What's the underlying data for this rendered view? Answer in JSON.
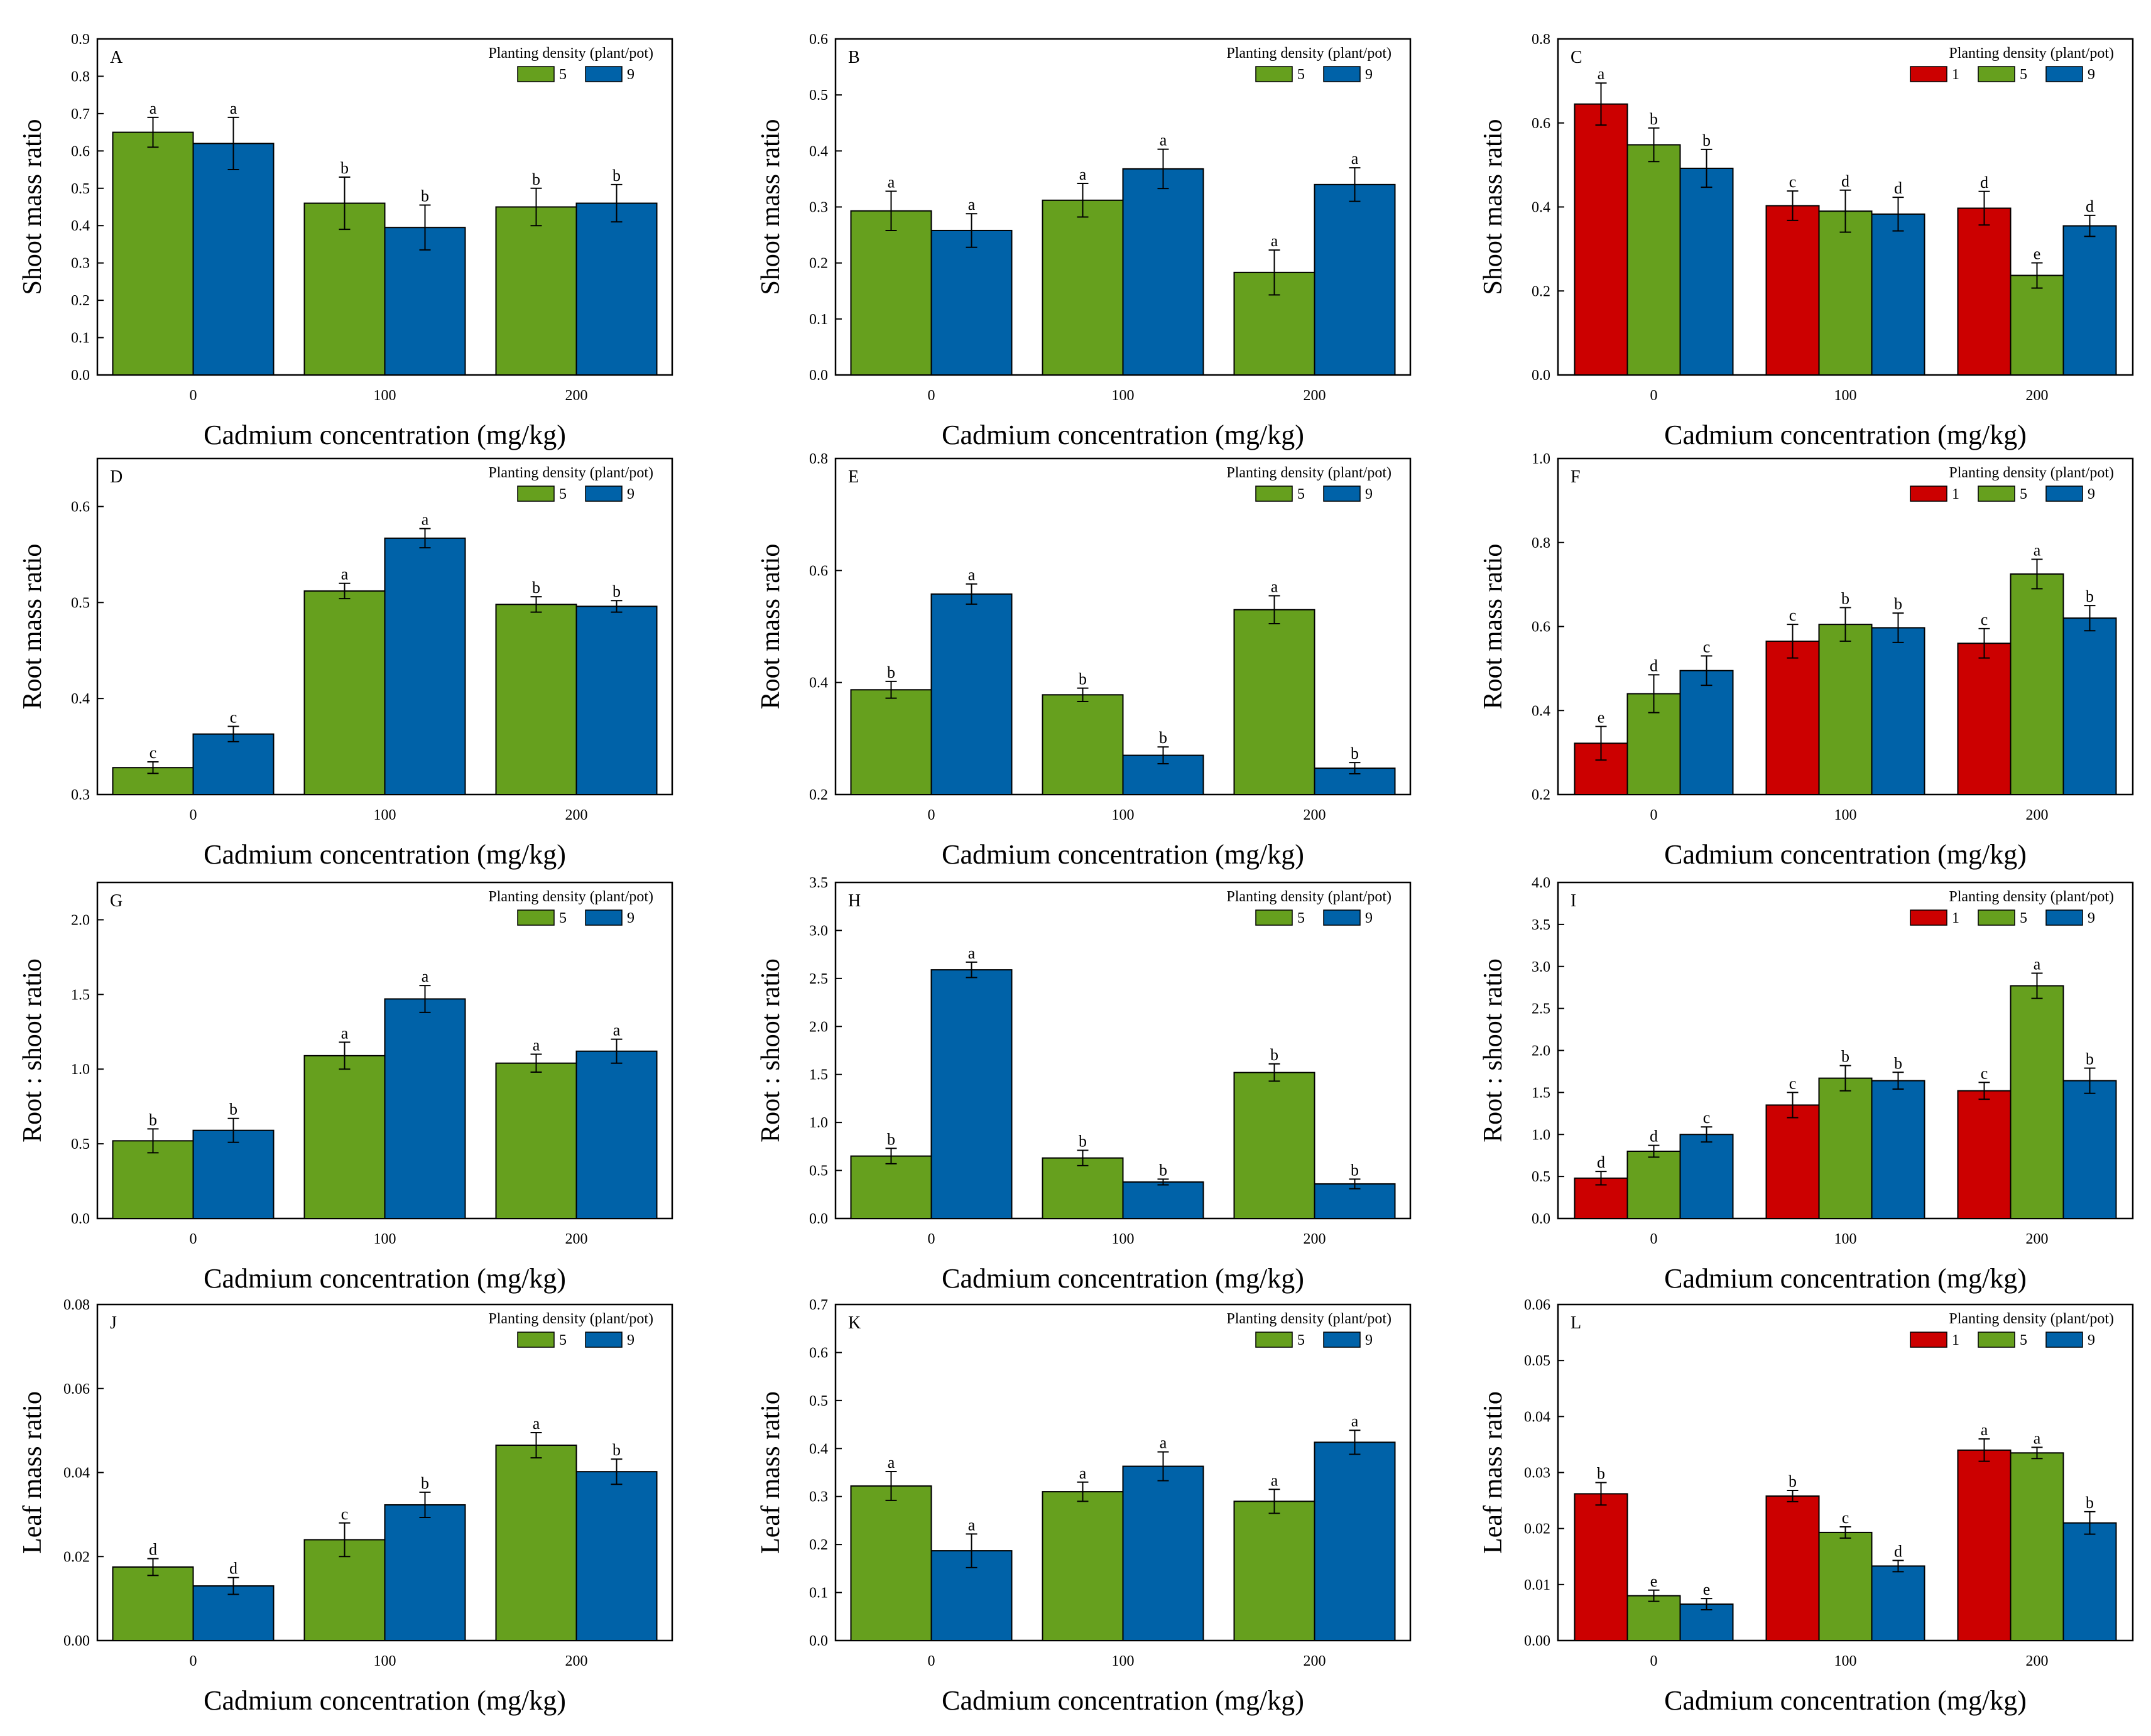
{
  "figure": {
    "legend_title": "Planting density (plant/pot)",
    "xlabel": "Cadmium concentration (mg/kg)",
    "categories": [
      "0",
      "100",
      "200"
    ],
    "colors": {
      "1": "#CC0000",
      "5": "#66A01E",
      "9": "#0062A8"
    }
  },
  "chart_data": [
    {
      "type": "bar",
      "panel": "A",
      "ylabel": "Shoot mass ratio",
      "xlabel": "Cadmium concentration (mg/kg)",
      "categories": [
        "0",
        "100",
        "200"
      ],
      "ylim": [
        0,
        0.9
      ],
      "yticks": [
        "0.0",
        "0.1",
        "0.2",
        "0.3",
        "0.4",
        "0.5",
        "0.6",
        "0.7",
        "0.8",
        "0.9"
      ],
      "legend": {
        "title": "Planting density (plant/pot)",
        "placement": "top-right"
      },
      "series": [
        {
          "name": "5",
          "color": "#66A01E",
          "values": [
            0.65,
            0.46,
            0.45
          ],
          "errors": [
            0.04,
            0.07,
            0.05
          ],
          "letters": [
            "a",
            "b",
            "b"
          ]
        },
        {
          "name": "9",
          "color": "#0062A8",
          "values": [
            0.62,
            0.395,
            0.46
          ],
          "errors": [
            0.07,
            0.06,
            0.05
          ],
          "letters": [
            "a",
            "b",
            "b"
          ]
        }
      ]
    },
    {
      "type": "bar",
      "panel": "B",
      "ylabel": "Shoot mass ratio",
      "xlabel": "Cadmium concentration (mg/kg)",
      "categories": [
        "0",
        "100",
        "200"
      ],
      "ylim": [
        0,
        0.6
      ],
      "yticks": [
        "0.0",
        "0.1",
        "0.2",
        "0.3",
        "0.4",
        "0.5",
        "0.6"
      ],
      "legend": {
        "title": "Planting density (plant/pot)",
        "placement": "top-right"
      },
      "series": [
        {
          "name": "5",
          "color": "#66A01E",
          "values": [
            0.293,
            0.312,
            0.183
          ],
          "errors": [
            0.035,
            0.03,
            0.04
          ],
          "letters": [
            "a",
            "a",
            "a"
          ]
        },
        {
          "name": "9",
          "color": "#0062A8",
          "values": [
            0.258,
            0.368,
            0.34
          ],
          "errors": [
            0.03,
            0.035,
            0.03
          ],
          "letters": [
            "a",
            "a",
            "a"
          ]
        }
      ]
    },
    {
      "type": "bar",
      "panel": "C",
      "ylabel": "Shoot mass ratio",
      "xlabel": "Cadmium concentration (mg/kg)",
      "categories": [
        "0",
        "100",
        "200"
      ],
      "ylim": [
        0,
        0.8
      ],
      "yticks": [
        "0.0",
        "0.2",
        "0.4",
        "0.6",
        "0.8"
      ],
      "legend": {
        "title": "Planting density (plant/pot)",
        "placement": "top-right"
      },
      "series": [
        {
          "name": "1",
          "color": "#CC0000",
          "values": [
            0.645,
            0.403,
            0.397
          ],
          "errors": [
            0.05,
            0.035,
            0.04
          ],
          "letters": [
            "a",
            "c",
            "d"
          ]
        },
        {
          "name": "5",
          "color": "#66A01E",
          "values": [
            0.548,
            0.39,
            0.237
          ],
          "errors": [
            0.04,
            0.05,
            0.03
          ],
          "letters": [
            "b",
            "d",
            "e"
          ]
        },
        {
          "name": "9",
          "color": "#0062A8",
          "values": [
            0.492,
            0.383,
            0.355
          ],
          "errors": [
            0.045,
            0.04,
            0.025
          ],
          "letters": [
            "b",
            "d",
            "d"
          ]
        }
      ]
    },
    {
      "type": "bar",
      "panel": "D",
      "ylabel": "Root mass ratio",
      "xlabel": "Cadmium concentration (mg/kg)",
      "categories": [
        "0",
        "100",
        "200"
      ],
      "ylim": [
        0.3,
        0.65
      ],
      "yticks": [
        "0.3",
        "0.4",
        "0.5",
        "0.6"
      ],
      "legend": {
        "title": "Planting density (plant/pot)",
        "placement": "top-right"
      },
      "series": [
        {
          "name": "5",
          "color": "#66A01E",
          "values": [
            0.328,
            0.512,
            0.498
          ],
          "errors": [
            0.006,
            0.008,
            0.008
          ],
          "letters": [
            "c",
            "a",
            "b"
          ]
        },
        {
          "name": "9",
          "color": "#0062A8",
          "values": [
            0.363,
            0.567,
            0.496
          ],
          "errors": [
            0.008,
            0.01,
            0.006
          ],
          "letters": [
            "c",
            "a",
            "b"
          ]
        }
      ]
    },
    {
      "type": "bar",
      "panel": "E",
      "ylabel": "Root mass ratio",
      "xlabel": "Cadmium concentration (mg/kg)",
      "categories": [
        "0",
        "100",
        "200"
      ],
      "ylim": [
        0.2,
        0.8
      ],
      "yticks": [
        "0.2",
        "0.4",
        "0.6",
        "0.8"
      ],
      "legend": {
        "title": "Planting density (plant/pot)",
        "placement": "top-right"
      },
      "series": [
        {
          "name": "5",
          "color": "#66A01E",
          "values": [
            0.387,
            0.378,
            0.53
          ],
          "errors": [
            0.015,
            0.012,
            0.025
          ],
          "letters": [
            "b",
            "b",
            "a"
          ]
        },
        {
          "name": "9",
          "color": "#0062A8",
          "values": [
            0.558,
            0.27,
            0.247
          ],
          "errors": [
            0.018,
            0.015,
            0.01
          ],
          "letters": [
            "a",
            "b",
            "b"
          ]
        }
      ]
    },
    {
      "type": "bar",
      "panel": "F",
      "ylabel": "Root mass ratio",
      "xlabel": "Cadmium concentration (mg/kg)",
      "categories": [
        "0",
        "100",
        "200"
      ],
      "ylim": [
        0.2,
        1.0
      ],
      "yticks": [
        "0.2",
        "0.4",
        "0.6",
        "0.8",
        "1.0"
      ],
      "legend": {
        "title": "Planting density (plant/pot)",
        "placement": "top-right"
      },
      "series": [
        {
          "name": "1",
          "color": "#CC0000",
          "values": [
            0.322,
            0.565,
            0.56
          ],
          "errors": [
            0.04,
            0.04,
            0.035
          ],
          "letters": [
            "e",
            "c",
            "c"
          ]
        },
        {
          "name": "5",
          "color": "#66A01E",
          "values": [
            0.44,
            0.605,
            0.725
          ],
          "errors": [
            0.045,
            0.04,
            0.035
          ],
          "letters": [
            "d",
            "b",
            "a"
          ]
        },
        {
          "name": "9",
          "color": "#0062A8",
          "values": [
            0.495,
            0.597,
            0.62
          ],
          "errors": [
            0.035,
            0.035,
            0.03
          ],
          "letters": [
            "c",
            "b",
            "b"
          ]
        }
      ]
    },
    {
      "type": "bar",
      "panel": "G",
      "ylabel": "Root : shoot ratio",
      "xlabel": "Cadmium concentration (mg/kg)",
      "categories": [
        "0",
        "100",
        "200"
      ],
      "ylim": [
        0,
        2.25
      ],
      "yticks": [
        "0.0",
        "0.5",
        "1.0",
        "1.5",
        "2.0"
      ],
      "legend": {
        "title": "Planting density (plant/pot)",
        "placement": "top-right"
      },
      "series": [
        {
          "name": "5",
          "color": "#66A01E",
          "values": [
            0.52,
            1.09,
            1.04
          ],
          "errors": [
            0.08,
            0.09,
            0.06
          ],
          "letters": [
            "b",
            "a",
            "a"
          ]
        },
        {
          "name": "9",
          "color": "#0062A8",
          "values": [
            0.59,
            1.47,
            1.12
          ],
          "errors": [
            0.08,
            0.09,
            0.08
          ],
          "letters": [
            "b",
            "a",
            "a"
          ]
        }
      ]
    },
    {
      "type": "bar",
      "panel": "H",
      "ylabel": "Root : shoot ratio",
      "xlabel": "Cadmium concentration (mg/kg)",
      "categories": [
        "0",
        "100",
        "200"
      ],
      "ylim": [
        0,
        3.5
      ],
      "yticks": [
        "0.0",
        "0.5",
        "1.0",
        "1.5",
        "2.0",
        "2.5",
        "3.0",
        "3.5"
      ],
      "legend": {
        "title": "Planting density (plant/pot)",
        "placement": "top-right"
      },
      "series": [
        {
          "name": "5",
          "color": "#66A01E",
          "values": [
            0.65,
            0.63,
            1.52
          ],
          "errors": [
            0.08,
            0.08,
            0.09
          ],
          "letters": [
            "b",
            "b",
            "b"
          ]
        },
        {
          "name": "9",
          "color": "#0062A8",
          "values": [
            2.59,
            0.38,
            0.36
          ],
          "errors": [
            0.08,
            0.03,
            0.05
          ],
          "letters": [
            "a",
            "b",
            "b"
          ]
        }
      ]
    },
    {
      "type": "bar",
      "panel": "I",
      "ylabel": "Root : shoot ratio",
      "xlabel": "Cadmium concentration (mg/kg)",
      "categories": [
        "0",
        "100",
        "200"
      ],
      "ylim": [
        0,
        4.0
      ],
      "yticks": [
        "0.0",
        "0.5",
        "1.0",
        "1.5",
        "2.0",
        "2.5",
        "3.0",
        "3.5",
        "4.0"
      ],
      "legend": {
        "title": "Planting density (plant/pot)",
        "placement": "top-right"
      },
      "series": [
        {
          "name": "1",
          "color": "#CC0000",
          "values": [
            0.48,
            1.35,
            1.52
          ],
          "errors": [
            0.08,
            0.15,
            0.1
          ],
          "letters": [
            "d",
            "c",
            "c"
          ]
        },
        {
          "name": "5",
          "color": "#66A01E",
          "values": [
            0.8,
            1.67,
            2.77
          ],
          "errors": [
            0.07,
            0.15,
            0.15
          ],
          "letters": [
            "d",
            "b",
            "a"
          ]
        },
        {
          "name": "9",
          "color": "#0062A8",
          "values": [
            1.0,
            1.64,
            1.64
          ],
          "errors": [
            0.09,
            0.1,
            0.15
          ],
          "letters": [
            "c",
            "b",
            "b"
          ]
        }
      ]
    },
    {
      "type": "bar",
      "panel": "J",
      "ylabel": "Leaf mass ratio",
      "xlabel": "Cadmium concentration (mg/kg)",
      "categories": [
        "0",
        "100",
        "200"
      ],
      "ylim": [
        0,
        0.08
      ],
      "yticks": [
        "0.00",
        "0.02",
        "0.04",
        "0.06",
        "0.08"
      ],
      "legend": {
        "title": "Planting density (plant/pot)",
        "placement": "top-right"
      },
      "series": [
        {
          "name": "5",
          "color": "#66A01E",
          "values": [
            0.0175,
            0.024,
            0.0465
          ],
          "errors": [
            0.002,
            0.004,
            0.003
          ],
          "letters": [
            "d",
            "c",
            "a"
          ]
        },
        {
          "name": "9",
          "color": "#0062A8",
          "values": [
            0.013,
            0.0323,
            0.0402
          ],
          "errors": [
            0.002,
            0.003,
            0.003
          ],
          "letters": [
            "d",
            "b",
            "b"
          ]
        }
      ]
    },
    {
      "type": "bar",
      "panel": "K",
      "ylabel": "Leaf mass ratio",
      "xlabel": "Cadmium concentration (mg/kg)",
      "categories": [
        "0",
        "100",
        "200"
      ],
      "ylim": [
        0,
        0.7
      ],
      "yticks": [
        "0.0",
        "0.1",
        "0.2",
        "0.3",
        "0.4",
        "0.5",
        "0.6",
        "0.7"
      ],
      "legend": {
        "title": "Planting density (plant/pot)",
        "placement": "top-right"
      },
      "series": [
        {
          "name": "5",
          "color": "#66A01E",
          "values": [
            0.322,
            0.31,
            0.29
          ],
          "errors": [
            0.03,
            0.02,
            0.025
          ],
          "letters": [
            "a",
            "a",
            "a"
          ]
        },
        {
          "name": "9",
          "color": "#0062A8",
          "values": [
            0.187,
            0.363,
            0.413
          ],
          "errors": [
            0.035,
            0.03,
            0.025
          ],
          "letters": [
            "a",
            "a",
            "a"
          ]
        }
      ]
    },
    {
      "type": "bar",
      "panel": "L",
      "ylabel": "Leaf mass ratio",
      "xlabel": "Cadmium concentration (mg/kg)",
      "categories": [
        "0",
        "100",
        "200"
      ],
      "ylim": [
        0,
        0.06
      ],
      "yticks": [
        "0.00",
        "0.01",
        "0.02",
        "0.03",
        "0.04",
        "0.05",
        "0.06"
      ],
      "legend": {
        "title": "Planting density (plant/pot)",
        "placement": "top-right"
      },
      "series": [
        {
          "name": "1",
          "color": "#CC0000",
          "values": [
            0.0262,
            0.0258,
            0.034
          ],
          "errors": [
            0.002,
            0.001,
            0.002
          ],
          "letters": [
            "b",
            "b",
            "a"
          ]
        },
        {
          "name": "5",
          "color": "#66A01E",
          "values": [
            0.008,
            0.0193,
            0.0335
          ],
          "errors": [
            0.001,
            0.001,
            0.001
          ],
          "letters": [
            "e",
            "c",
            "a"
          ]
        },
        {
          "name": "9",
          "color": "#0062A8",
          "values": [
            0.0065,
            0.0133,
            0.021
          ],
          "errors": [
            0.001,
            0.001,
            0.002
          ],
          "letters": [
            "e",
            "d",
            "b"
          ]
        }
      ]
    }
  ]
}
